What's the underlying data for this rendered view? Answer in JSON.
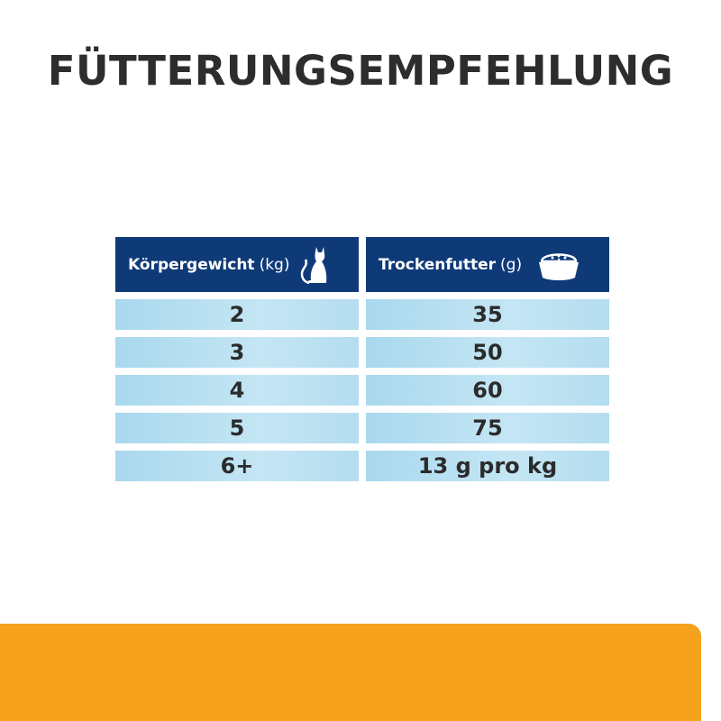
{
  "title": "FÜTTERUNGSEMPFEHLUNG",
  "table": {
    "headers": [
      {
        "label": "Körpergewicht",
        "unit": "(kg)",
        "icon": "cat-icon"
      },
      {
        "label": "Trockenfutter",
        "unit": "(g)",
        "icon": "food-bowl-icon"
      }
    ],
    "rows": [
      [
        "2",
        "35"
      ],
      [
        "3",
        "50"
      ],
      [
        "4",
        "60"
      ],
      [
        "5",
        "75"
      ],
      [
        "6+",
        "13 g pro kg"
      ]
    ]
  },
  "colors": {
    "header": "#0f3a78",
    "cell": "#bfe3f3",
    "accent": "#f7a21b"
  }
}
